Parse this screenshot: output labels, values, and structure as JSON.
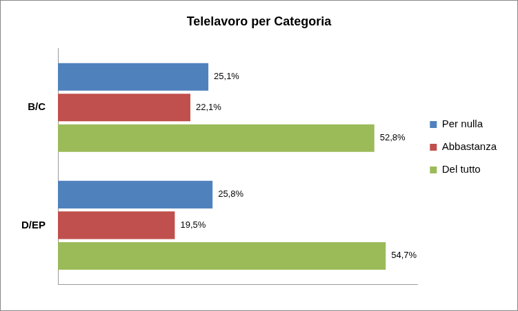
{
  "chart_data": {
    "type": "bar",
    "title": "Telelavoro per Categoria",
    "orientation": "horizontal",
    "categories": [
      "B/C",
      "D/EP"
    ],
    "series": [
      {
        "name": "Per nulla",
        "color": "#4f81bd",
        "values": [
          25.1,
          25.8
        ],
        "value_labels": [
          "25,1%",
          "25,8%"
        ]
      },
      {
        "name": "Abbastanza",
        "color": "#c0504d",
        "values": [
          22.1,
          19.5
        ],
        "value_labels": [
          "22,1%",
          "19,5%"
        ]
      },
      {
        "name": "Del tutto",
        "color": "#9bbb59",
        "values": [
          52.8,
          54.7
        ],
        "value_labels": [
          "52,8%",
          "54,7%"
        ]
      }
    ],
    "xlim": [
      0,
      60
    ],
    "grid": false,
    "legend": "right",
    "data_labels": true,
    "tick_labels": "y"
  }
}
